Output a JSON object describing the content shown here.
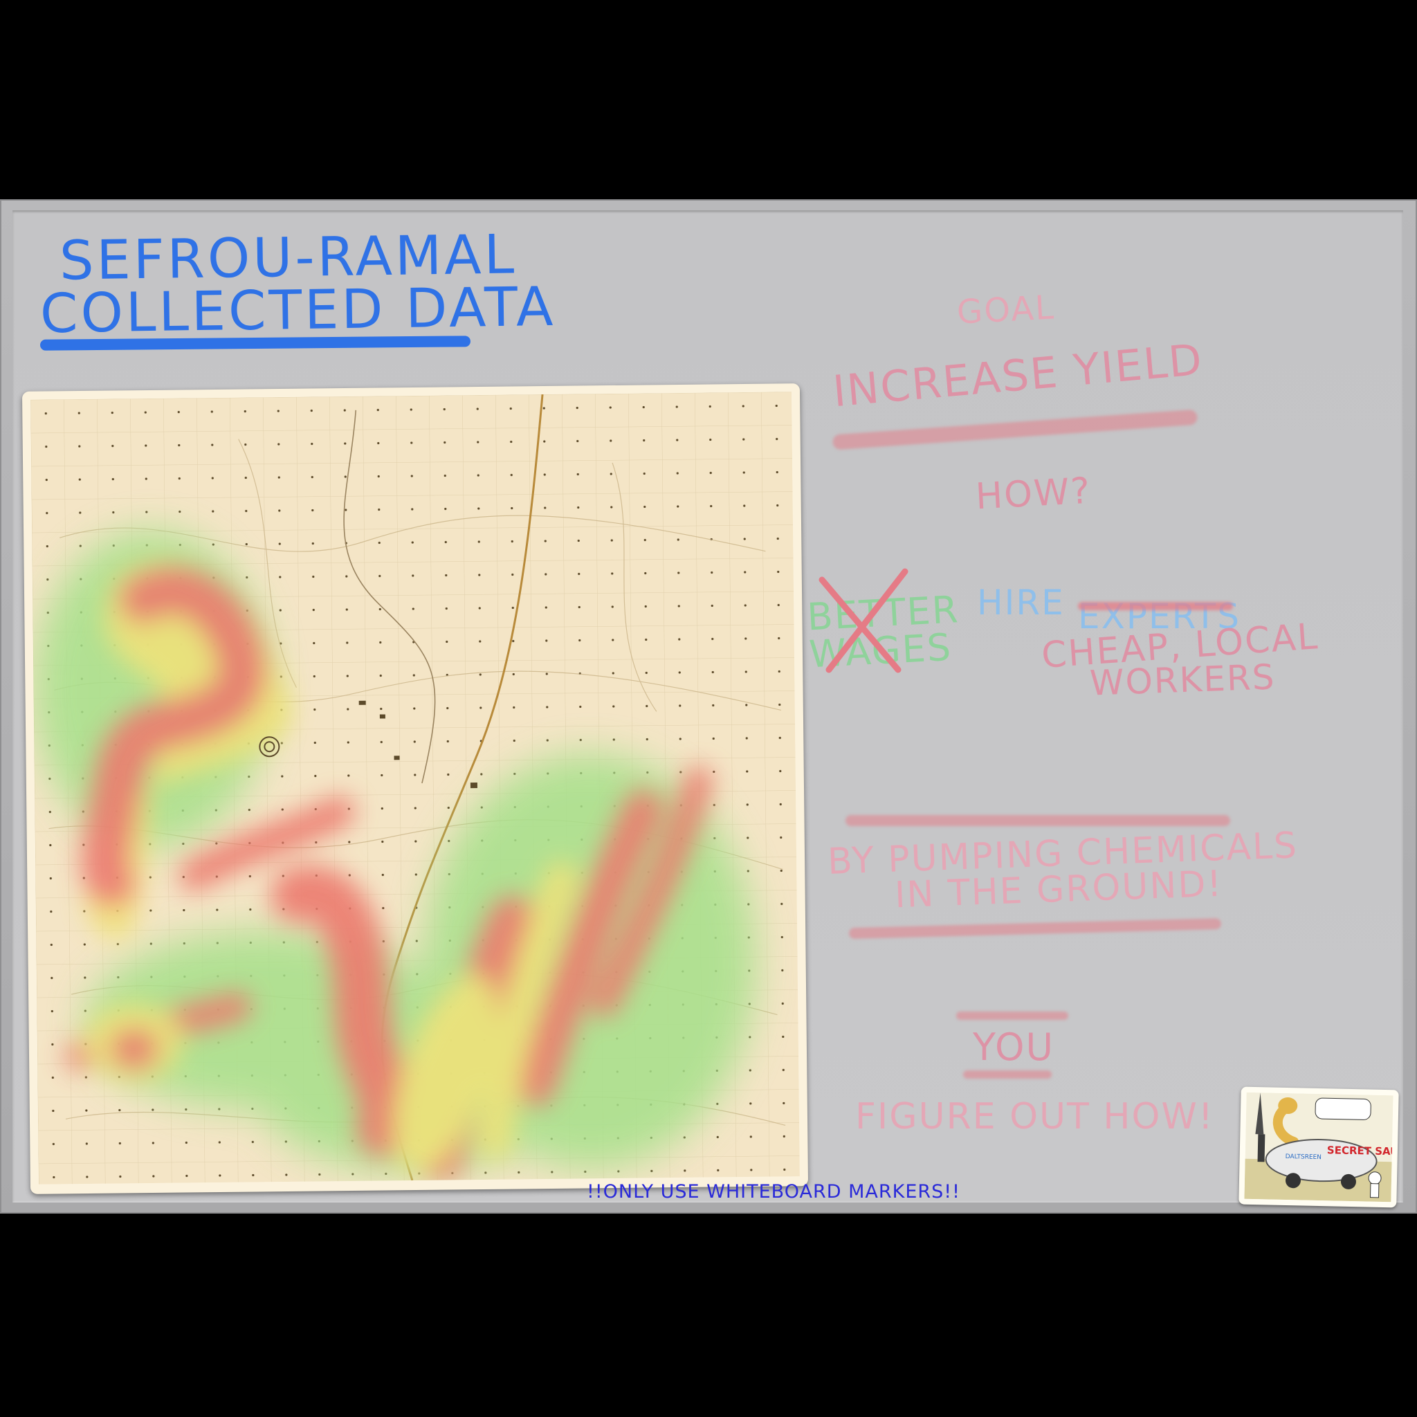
{
  "board": {
    "title_line1": "SEFROU-RAMAL",
    "title_line2": "COLLECTED DATA",
    "goal_label": "GOAL",
    "goal_text": "INCREASE YIELD",
    "how_label": "HOW?",
    "better_wages": "BETTER WAGES",
    "hire_label": "HIRE",
    "experts_label": "EXPERTS",
    "cheap_local_line1": "CHEAP, LOCAL",
    "cheap_local_line2": "WORKERS",
    "chemicals_line1": "BY PUMPING CHEMICALS",
    "chemicals_line2": "IN THE GROUND!",
    "you_label": "YOU",
    "figure_out": "FIGURE OUT HOW!",
    "footer_note": "!!ONLY USE WHITEBOARD MARKERS!!"
  },
  "colors": {
    "marker_blue": "#2f72e6",
    "marker_pink": "#e4a7b6",
    "marker_red": "#e06a7d",
    "marker_green": "#7fd18a",
    "marker_light_blue": "#8fbfea",
    "heat_red": "#ec7a6e",
    "heat_yellow": "#efe27a",
    "heat_green": "#a6e08a",
    "map_paper": "#f5e6c8"
  },
  "icons": {
    "map": "topographic-heatmap",
    "comic": "secret-sauce-cartoon"
  },
  "comic": {
    "truck_label": "SECRET SAUCE",
    "tank_label": "DALTSREEN"
  }
}
